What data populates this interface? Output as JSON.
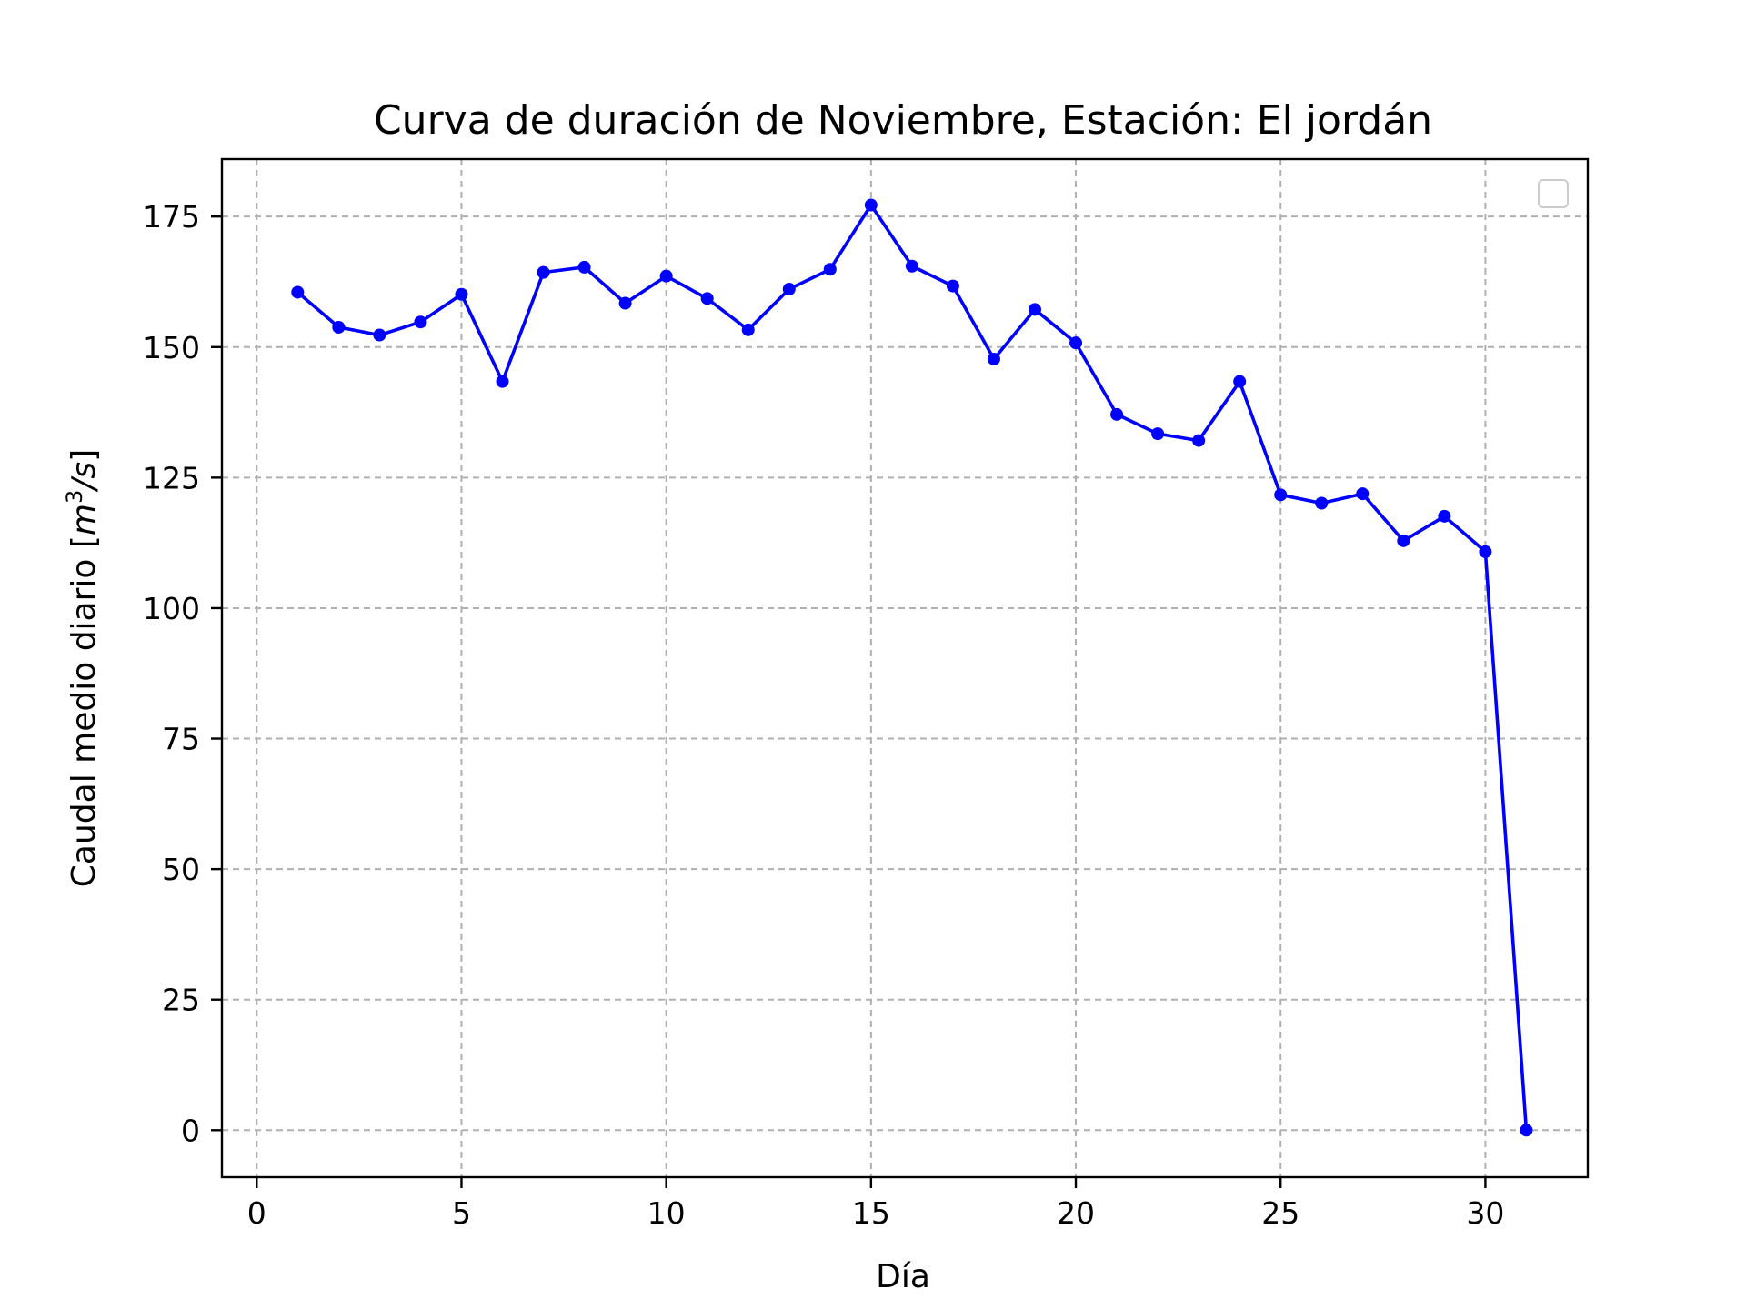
{
  "chart_data": {
    "type": "line",
    "title": "Curva de duración de Noviembre, Estación: El jordán",
    "xlabel": "Día",
    "ylabel_main": "Caudal medio diario [",
    "ylabel_unit_base": "m",
    "ylabel_unit_exp": "3",
    "ylabel_unit_tail": "/s",
    "ylabel_close": "]",
    "xlim": [
      -0.85,
      32.5
    ],
    "ylim": [
      -9,
      186
    ],
    "xticks": [
      0,
      5,
      10,
      15,
      20,
      25,
      30
    ],
    "yticks": [
      0,
      25,
      50,
      75,
      100,
      125,
      150,
      175
    ],
    "grid": true,
    "legend": "top-right",
    "color": "#0000ff",
    "series": [
      {
        "x": [
          1,
          2,
          3,
          4,
          5,
          6,
          7,
          8,
          9,
          10,
          11,
          12,
          13,
          14,
          15,
          16,
          17,
          18,
          19,
          20,
          21,
          22,
          23,
          24,
          25,
          26,
          27,
          28,
          29,
          30,
          31
        ],
        "values": [
          160.5,
          153.8,
          152.3,
          154.8,
          160.1,
          143.4,
          164.3,
          165.3,
          158.4,
          163.6,
          159.3,
          153.3,
          161.1,
          164.9,
          177.2,
          165.5,
          161.7,
          147.7,
          157.2,
          150.8,
          137.1,
          133.4,
          132.1,
          143.4,
          121.7,
          120.1,
          121.9,
          112.9,
          117.6,
          110.8,
          0
        ]
      }
    ]
  }
}
